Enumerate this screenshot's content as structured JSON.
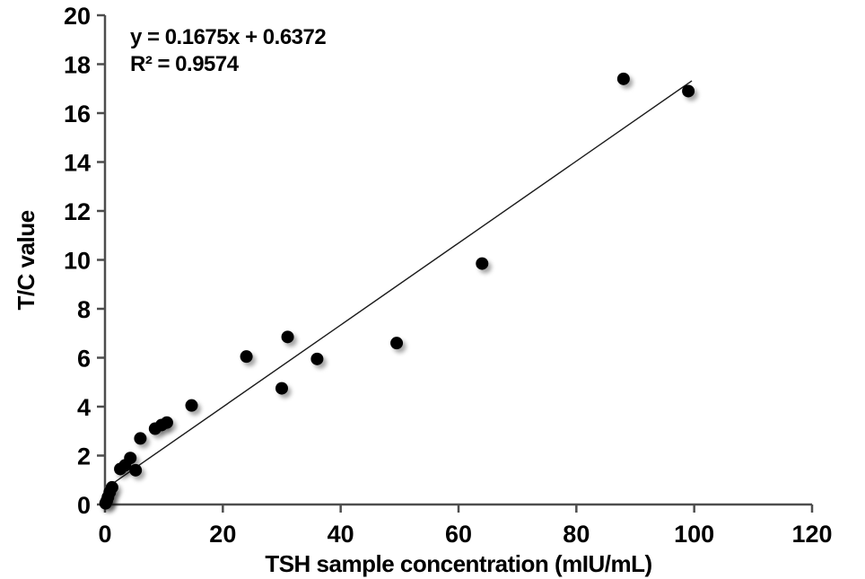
{
  "chart_data": {
    "type": "scatter",
    "title": "",
    "xlabel": "TSH sample concentration (mIU/mL)",
    "ylabel": "T/C value",
    "equation_label": "y = 0.1675x + 0.6372",
    "r2_label": "R² = 0.9574",
    "xlim": [
      0,
      120
    ],
    "ylim": [
      0,
      20
    ],
    "xticks": [
      0,
      20,
      40,
      60,
      80,
      100,
      120
    ],
    "yticks": [
      0,
      2,
      4,
      6,
      8,
      10,
      12,
      14,
      16,
      18,
      20
    ],
    "grid": false,
    "legend": "none",
    "points": [
      [
        0.1,
        0.05
      ],
      [
        0.3,
        0.15
      ],
      [
        0.5,
        0.3
      ],
      [
        0.8,
        0.5
      ],
      [
        1.2,
        0.7
      ],
      [
        2.6,
        1.45
      ],
      [
        3.4,
        1.6
      ],
      [
        4.3,
        1.9
      ],
      [
        5.2,
        1.4
      ],
      [
        6.0,
        2.7
      ],
      [
        8.5,
        3.1
      ],
      [
        9.6,
        3.25
      ],
      [
        10.5,
        3.35
      ],
      [
        14.7,
        4.05
      ],
      [
        24,
        6.05
      ],
      [
        30,
        4.75
      ],
      [
        31,
        6.85
      ],
      [
        36,
        5.95
      ],
      [
        49.5,
        6.6
      ],
      [
        64,
        9.85
      ],
      [
        88,
        17.4
      ],
      [
        99,
        16.9
      ]
    ],
    "trendline": {
      "slope": 0.1675,
      "intercept": 0.6372,
      "x_start": 0,
      "x_end": 99.6
    },
    "colors": {
      "marker": "#000000",
      "axis": "#4d4d4d",
      "trend_line": "#1a1a1a",
      "background": "#ffffff",
      "text": "#000000"
    }
  }
}
